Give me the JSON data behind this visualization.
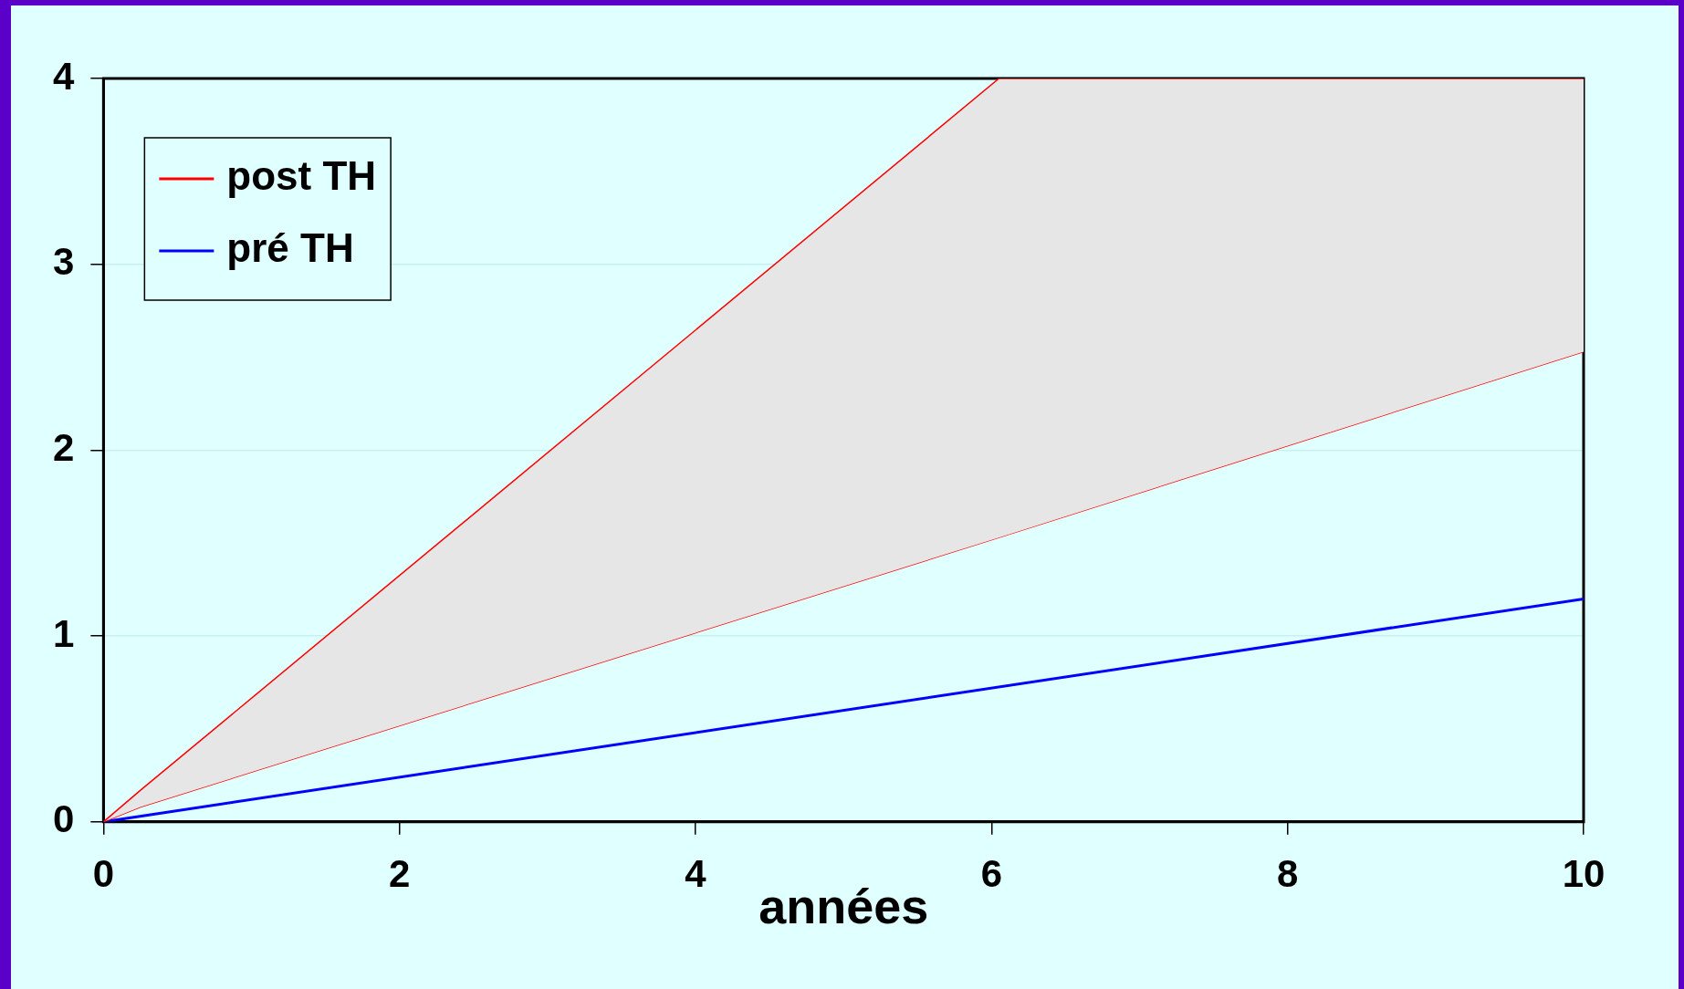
{
  "chart_data": {
    "type": "line",
    "xlabel": "années",
    "xlim": [
      0,
      10
    ],
    "xticks": [
      0,
      2,
      4,
      6,
      8,
      10
    ],
    "ylim": [
      0,
      4
    ],
    "yticks": [
      0,
      1,
      2,
      3,
      4
    ],
    "grid": "y",
    "legend": "top left",
    "series": [
      {
        "name": "post TH",
        "color": "#ff0000",
        "x": [
          0,
          0.25,
          6.05,
          10
        ],
        "values": [
          0,
          0.17,
          4,
          4
        ]
      },
      {
        "color": "#ff0000",
        "x": [
          0,
          0.25,
          6.05,
          10
        ],
        "values": [
          0,
          0.08,
          1.53,
          2.53
        ],
        "lower": [
          0,
          0.08,
          1.53,
          2.53
        ],
        "upper": [
          0,
          0.17,
          4,
          4
        ]
      },
      {
        "name": "pré TH",
        "color": "#0000ff",
        "x": [
          0,
          10
        ],
        "values": [
          0,
          1.2
        ]
      }
    ]
  }
}
